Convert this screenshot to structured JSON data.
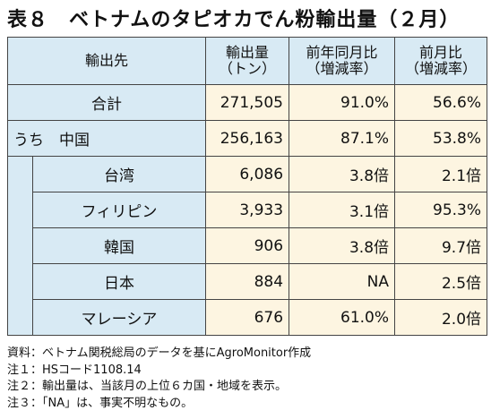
{
  "title": "表８　ベトナムのタピオカでん粉輸出量（２月）",
  "header": {
    "destination": "輸出先",
    "volume_line1": "輸出量",
    "volume_line2": "（トン）",
    "yoy_line1": "前年同月比",
    "yoy_line2": "（増減率）",
    "mom_line1": "前月比",
    "mom_line2": "（増減率）"
  },
  "rows": [
    {
      "country": "合計",
      "volume": "271,505",
      "yoy": "91.0%",
      "mom": "56.6%"
    },
    {
      "country": "うち　中国",
      "volume": "256,163",
      "yoy": "87.1%",
      "mom": "53.8%"
    },
    {
      "country": "台湾",
      "volume": "6,086",
      "yoy": "3.8倍",
      "mom": "2.1倍"
    },
    {
      "country": "フィリピン",
      "volume": "3,933",
      "yoy": "3.1倍",
      "mom": "95.3%"
    },
    {
      "country": "韓国",
      "volume": "906",
      "yoy": "3.8倍",
      "mom": "9.7倍"
    },
    {
      "country": "日本",
      "volume": "884",
      "yoy": "NA",
      "mom": "2.5倍"
    },
    {
      "country": "マレーシア",
      "volume": "676",
      "yoy": "61.0%",
      "mom": "2.0倍"
    }
  ],
  "notes": [
    "資料：ベトナム関税総局のデータを基にAgroMonitor作成",
    "注１：HSコード1108.14",
    "注２：輸出量は、当該月の上位６カ国・地域を表示。",
    "注３：「NA」は、事実不明なもの。"
  ],
  "colors": {
    "label_bg": "#d8eaf4",
    "value_bg": "#fdf5e1",
    "border": "#444444"
  }
}
